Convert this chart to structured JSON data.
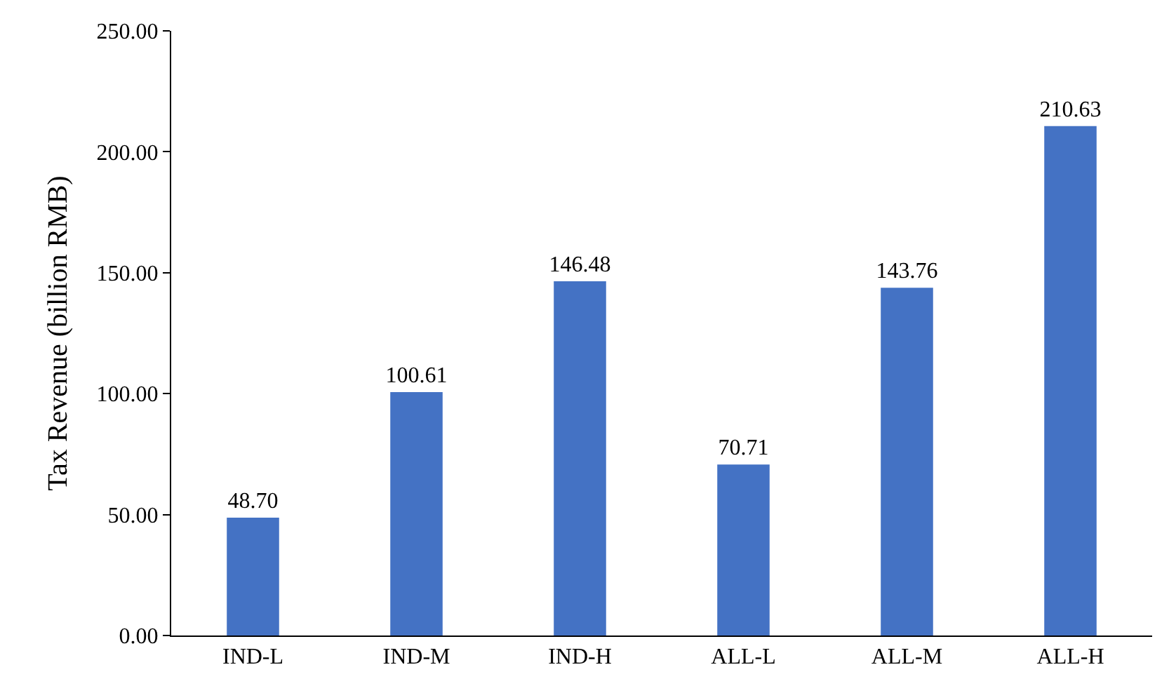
{
  "chart_data": {
    "type": "bar",
    "ylabel": "Tax Revenue (billion RMB)",
    "categories": [
      "IND-L",
      "IND-M",
      "IND-H",
      "ALL-L",
      "ALL-M",
      "ALL-H"
    ],
    "values": [
      48.7,
      100.61,
      146.48,
      70.71,
      143.76,
      210.63
    ],
    "value_labels": [
      "48.70",
      "100.61",
      "146.48",
      "70.71",
      "143.76",
      "210.63"
    ],
    "color": "#4472c4",
    "ylim": [
      0,
      250
    ],
    "yticks": [
      {
        "value": 0,
        "label": "0.00"
      },
      {
        "value": 50,
        "label": "50.00"
      },
      {
        "value": 100,
        "label": "100.00"
      },
      {
        "value": 150,
        "label": "150.00"
      },
      {
        "value": 200,
        "label": "200.00"
      },
      {
        "value": 250,
        "label": "250.00"
      }
    ],
    "line_style": "solid"
  }
}
